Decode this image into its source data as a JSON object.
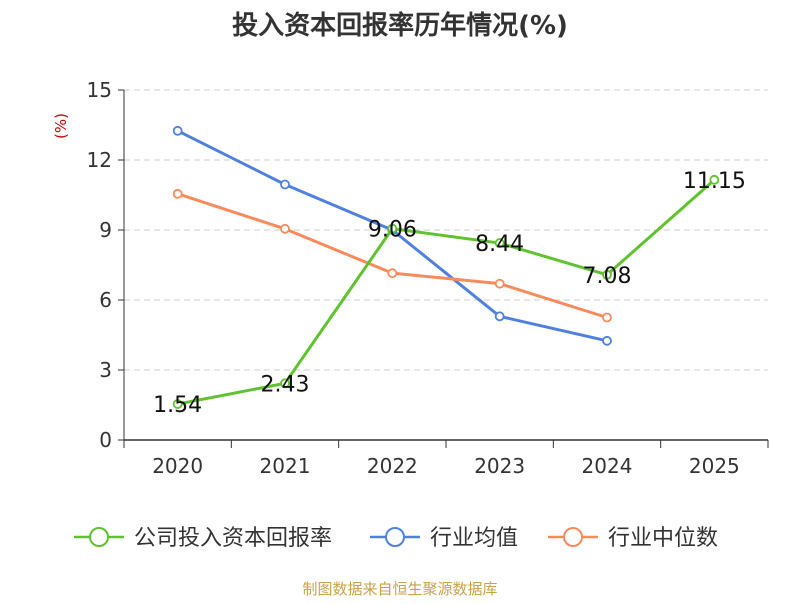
{
  "chart_data": {
    "type": "line",
    "title": "投入资本回报率历年情况(%)",
    "ylabel": "(%)",
    "xlabel": "",
    "categories": [
      "2020",
      "2021",
      "2022",
      "2023",
      "2024",
      "2025"
    ],
    "ylim": [
      0,
      15
    ],
    "yticks": [
      0,
      3,
      6,
      9,
      12,
      15
    ],
    "grid": true,
    "legend_position": "bottom",
    "series": [
      {
        "name": "公司投入资本回报率",
        "color": "#5ec32e",
        "values": [
          1.54,
          2.43,
          9.06,
          8.44,
          7.08,
          11.15
        ],
        "data_labels": [
          "1.54",
          "2.43",
          "9.06",
          "8.44",
          "7.08",
          "11.15"
        ]
      },
      {
        "name": "行业均值",
        "color": "#4f81e0",
        "values": [
          13.25,
          10.95,
          9.0,
          5.3,
          4.25,
          null
        ]
      },
      {
        "name": "行业中位数",
        "color": "#f98b5b",
        "values": [
          10.55,
          9.05,
          7.15,
          6.7,
          5.25,
          null
        ]
      }
    ]
  },
  "source": "制图数据来自恒生聚源数据库",
  "colors": {
    "axis": "#333333",
    "grid": "#cccccc",
    "ylabel": "#cc0000",
    "source_text": "#c9a24a"
  }
}
